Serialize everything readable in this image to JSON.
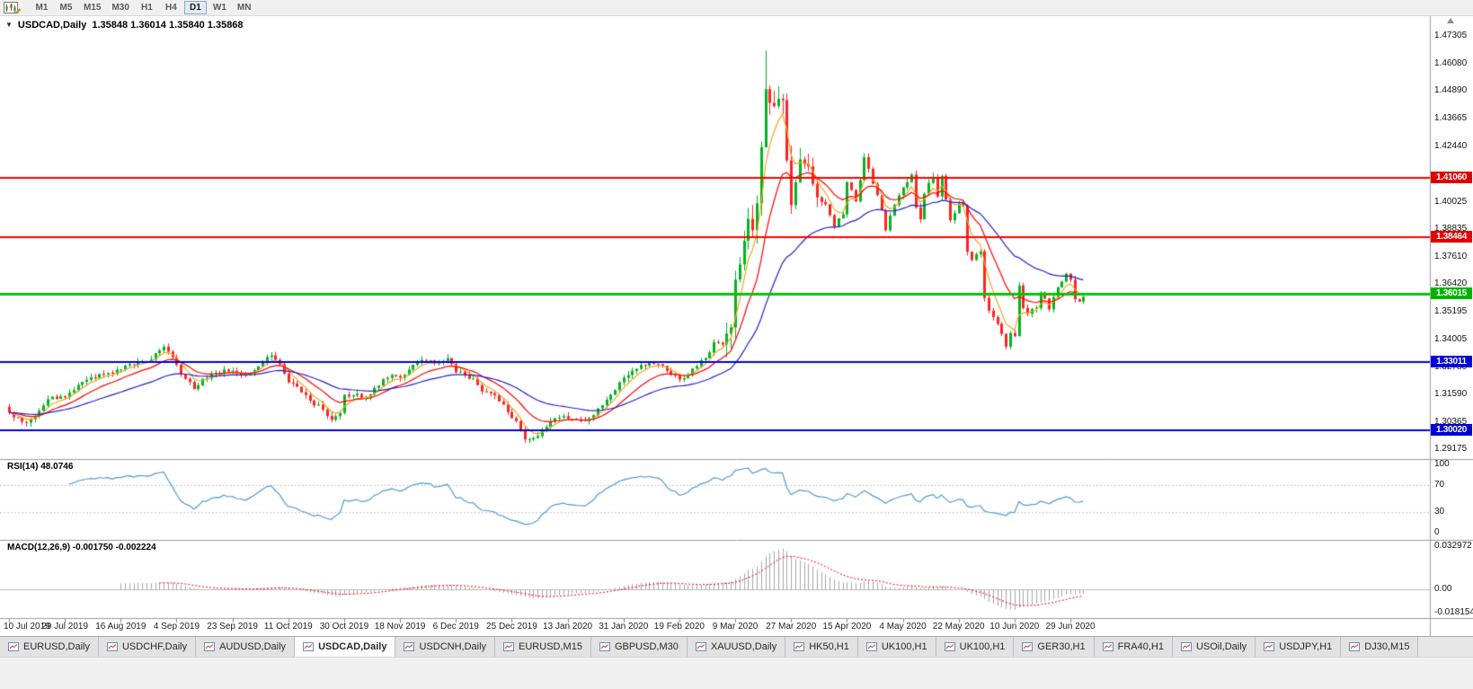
{
  "toolbar": {
    "timeframes": [
      "M1",
      "M5",
      "M15",
      "M30",
      "H1",
      "H4",
      "D1",
      "W1",
      "MN"
    ],
    "active_timeframe": "D1"
  },
  "chart": {
    "title_symbol": "USDCAD,Daily",
    "title_ohlc": "1.35848 1.36014 1.35840 1.35868"
  },
  "chart_data": {
    "type": "candlestick",
    "symbol": "USDCAD",
    "period": "Daily",
    "current": {
      "open": 1.35848,
      "high": 1.36014,
      "low": 1.3584,
      "close": 1.35868,
      "rsi": 48.0746,
      "macd": -0.00175,
      "macd_signal": -0.002224
    },
    "num_bars": 251,
    "label_step": 13,
    "y_min": 1.288,
    "y_max": 1.4745,
    "x_labels": [
      "10 Jul 2019",
      "29 Jul 2019",
      "16 Aug 2019",
      "4 Sep 2019",
      "23 Sep 2019",
      "11 Oct 2019",
      "30 Oct 2019",
      "18 Nov 2019",
      "6 Dec 2019",
      "25 Dec 2019",
      "13 Jan 2020",
      "31 Jan 2020",
      "19 Feb 2020",
      "9 Mar 2020",
      "27 Mar 2020",
      "15 Apr 2020",
      "4 May 2020",
      "22 May 2020",
      "10 Jun 2020",
      "29 Jun 2020"
    ],
    "y_ticks": [
      {
        "text": "1.47305",
        "value": 1.47305
      },
      {
        "text": "1.46080",
        "value": 1.4608
      },
      {
        "text": "1.44890",
        "value": 1.4489
      },
      {
        "text": "1.43665",
        "value": 1.43665
      },
      {
        "text": "1.42440",
        "value": 1.4244
      },
      {
        "text": "1.40025",
        "value": 1.40025
      },
      {
        "text": "1.38835",
        "value": 1.38835
      },
      {
        "text": "1.37610",
        "value": 1.3761
      },
      {
        "text": "1.36420",
        "value": 1.3642
      },
      {
        "text": "1.35195",
        "value": 1.35195
      },
      {
        "text": "1.34005",
        "value": 1.34005
      },
      {
        "text": "1.32780",
        "value": 1.3278
      },
      {
        "text": "1.31590",
        "value": 1.3159
      },
      {
        "text": "1.30365",
        "value": 1.30365
      },
      {
        "text": "1.29175",
        "value": 1.29175
      }
    ],
    "price_lines": [
      {
        "value": 1.4106,
        "color": "#FF0000",
        "width": 2
      },
      {
        "value": 1.38464,
        "color": "#FF0000",
        "width": 2
      },
      {
        "value": 1.36015,
        "color": "#00C800",
        "width": 3
      },
      {
        "value": 1.33011,
        "color": "#0000E0",
        "width": 2
      },
      {
        "value": 1.3002,
        "color": "#0000E0",
        "width": 2
      }
    ],
    "price_badges": [
      {
        "text": "1.41060",
        "value": 1.4106,
        "color": "#E00000"
      },
      {
        "text": "1.38464",
        "value": 1.38464,
        "color": "#E00000"
      },
      {
        "text": "1.36015",
        "value": 1.36015,
        "color": "#00B400"
      },
      {
        "text": "1.33011",
        "value": 1.33011,
        "color": "#0000D8"
      },
      {
        "text": "1.30020",
        "value": 1.3002,
        "color": "#0000D8"
      }
    ],
    "colors": {
      "up": "#00B422",
      "down": "#FF2222",
      "axis_line": "#9a9a9a"
    },
    "moving_averages": [
      {
        "name": "ma-fast",
        "color": "#EFA820",
        "period": 5
      },
      {
        "name": "ma-mid",
        "color": "#FF0000",
        "period": 13
      },
      {
        "name": "ma-slow",
        "color": "#2222CC",
        "period": 34
      }
    ],
    "close_anchors": [
      [
        0,
        1.308
      ],
      [
        2,
        1.3058
      ],
      [
        4,
        1.3035
      ],
      [
        6,
        1.3062
      ],
      [
        9,
        1.3138
      ],
      [
        13,
        1.3146
      ],
      [
        17,
        1.3214
      ],
      [
        20,
        1.3232
      ],
      [
        23,
        1.3254
      ],
      [
        26,
        1.3268
      ],
      [
        29,
        1.3288
      ],
      [
        33,
        1.3312
      ],
      [
        36,
        1.3368
      ],
      [
        38,
        1.3322
      ],
      [
        40,
        1.3248
      ],
      [
        43,
        1.3182
      ],
      [
        45,
        1.3228
      ],
      [
        47,
        1.3246
      ],
      [
        50,
        1.3268
      ],
      [
        52,
        1.3262
      ],
      [
        55,
        1.3242
      ],
      [
        58,
        1.3282
      ],
      [
        61,
        1.333
      ],
      [
        63,
        1.3292
      ],
      [
        65,
        1.3212
      ],
      [
        68,
        1.3168
      ],
      [
        70,
        1.3132
      ],
      [
        73,
        1.3092
      ],
      [
        75,
        1.3048
      ],
      [
        77,
        1.3078
      ],
      [
        78,
        1.3158
      ],
      [
        80,
        1.3154
      ],
      [
        83,
        1.3148
      ],
      [
        85,
        1.3188
      ],
      [
        87,
        1.3226
      ],
      [
        89,
        1.3244
      ],
      [
        91,
        1.3232
      ],
      [
        93,
        1.3268
      ],
      [
        95,
        1.3298
      ],
      [
        98,
        1.3308
      ],
      [
        100,
        1.3298
      ],
      [
        102,
        1.3318
      ],
      [
        104,
        1.3256
      ],
      [
        106,
        1.3242
      ],
      [
        108,
        1.3228
      ],
      [
        110,
        1.3172
      ],
      [
        112,
        1.3164
      ],
      [
        114,
        1.3128
      ],
      [
        116,
        1.3082
      ],
      [
        118,
        1.3042
      ],
      [
        120,
        1.2962
      ],
      [
        122,
        1.2968
      ],
      [
        124,
        1.3002
      ],
      [
        126,
        1.3042
      ],
      [
        128,
        1.3058
      ],
      [
        130,
        1.3052
      ],
      [
        132,
        1.3046
      ],
      [
        134,
        1.3042
      ],
      [
        136,
        1.3068
      ],
      [
        138,
        1.3112
      ],
      [
        140,
        1.3158
      ],
      [
        143,
        1.3232
      ],
      [
        145,
        1.3262
      ],
      [
        147,
        1.3288
      ],
      [
        149,
        1.3298
      ],
      [
        151,
        1.3292
      ],
      [
        153,
        1.3262
      ],
      [
        156,
        1.3224
      ],
      [
        158,
        1.3242
      ],
      [
        160,
        1.3282
      ],
      [
        162,
        1.3318
      ],
      [
        164,
        1.3388
      ],
      [
        166,
        1.3378
      ],
      [
        168,
        1.3452
      ],
      [
        169,
        1.3662
      ],
      [
        170,
        1.3728
      ],
      [
        171,
        1.3832
      ],
      [
        172,
        1.3928
      ],
      [
        173,
        1.3878
      ],
      [
        174,
        1.3996
      ],
      [
        175,
        1.4242
      ],
      [
        176,
        1.4496
      ],
      [
        177,
        1.4436
      ],
      [
        178,
        1.4422
      ],
      [
        179,
        1.4454
      ],
      [
        180,
        1.4448
      ],
      [
        181,
        1.4184
      ],
      [
        182,
        1.3988
      ],
      [
        183,
        1.4088
      ],
      [
        184,
        1.4188
      ],
      [
        185,
        1.4168
      ],
      [
        186,
        1.4158
      ],
      [
        188,
        1.4022
      ],
      [
        190,
        1.3992
      ],
      [
        192,
        1.3894
      ],
      [
        194,
        1.3948
      ],
      [
        195,
        1.4088
      ],
      [
        197,
        1.4004
      ],
      [
        199,
        1.4198
      ],
      [
        201,
        1.4082
      ],
      [
        202,
        1.4032
      ],
      [
        204,
        1.3878
      ],
      [
        205,
        1.3942
      ],
      [
        208,
        1.4066
      ],
      [
        210,
        1.4122
      ],
      [
        211,
        1.3978
      ],
      [
        212,
        1.3926
      ],
      [
        213,
        1.4038
      ],
      [
        215,
        1.4112
      ],
      [
        216,
        1.4026
      ],
      [
        217,
        1.4116
      ],
      [
        219,
        1.3922
      ],
      [
        221,
        1.3996
      ],
      [
        222,
        1.3984
      ],
      [
        223,
        1.3784
      ],
      [
        224,
        1.3748
      ],
      [
        226,
        1.3786
      ],
      [
        227,
        1.3582
      ],
      [
        228,
        1.3526
      ],
      [
        229,
        1.3498
      ],
      [
        231,
        1.3424
      ],
      [
        232,
        1.3368
      ],
      [
        233,
        1.3428
      ],
      [
        234,
        1.3414
      ],
      [
        235,
        1.3636
      ],
      [
        236,
        1.3538
      ],
      [
        237,
        1.3512
      ],
      [
        239,
        1.3538
      ],
      [
        240,
        1.3606
      ],
      [
        242,
        1.3532
      ],
      [
        244,
        1.3628
      ],
      [
        246,
        1.3688
      ],
      [
        247,
        1.3662
      ],
      [
        248,
        1.3576
      ],
      [
        249,
        1.3566
      ],
      [
        250,
        1.35868
      ]
    ],
    "extremes": {
      "high": 1.4665,
      "low": 1.2949
    }
  },
  "rsi": {
    "label": "RSI(14) 48.0746",
    "period": 14,
    "color": "#4E9BD4",
    "levels": [
      70,
      30
    ],
    "axis": [
      {
        "text": "100",
        "value": 100
      },
      {
        "text": "70",
        "value": 70
      },
      {
        "text": "30",
        "value": 30
      },
      {
        "text": "0",
        "value": 0
      }
    ]
  },
  "macd": {
    "label": "MACD(12,26,9) -0.001750 -0.002224",
    "fast": 12,
    "slow": 26,
    "signal": 9,
    "histogram_color": "#A6A6A6",
    "signal_color": "#FF0000",
    "range": {
      "max": 0.0345,
      "min": -0.0195
    },
    "axis": [
      {
        "text": "0.032972",
        "value": 0.032972
      },
      {
        "text": "0.00",
        "value": 0
      },
      {
        "text": "-0.018154",
        "value": -0.018154
      }
    ]
  },
  "tabs": {
    "active_index": 3,
    "items": [
      {
        "label": "EURUSD,Daily"
      },
      {
        "label": "USDCHF,Daily"
      },
      {
        "label": "AUDUSD,Daily"
      },
      {
        "label": "USDCAD,Daily"
      },
      {
        "label": "USDCNH,Daily"
      },
      {
        "label": "EURUSD,M15"
      },
      {
        "label": "GBPUSD,M30"
      },
      {
        "label": "XAUUSD,Daily"
      },
      {
        "label": "HK50,H1"
      },
      {
        "label": "UK100,H1"
      },
      {
        "label": "UK100,H1"
      },
      {
        "label": "GER30,H1"
      },
      {
        "label": "FRA40,H1"
      },
      {
        "label": "USOil,Daily"
      },
      {
        "label": "USDJPY,H1"
      },
      {
        "label": "DJ30,M15"
      }
    ]
  }
}
